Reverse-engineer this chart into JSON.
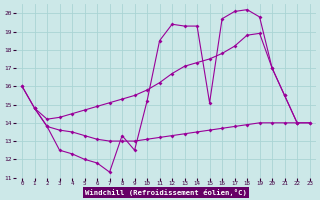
{
  "xlabel": "Windchill (Refroidissement éolien,°C)",
  "background_color": "#cce8e8",
  "grid_color": "#aad4d4",
  "line_color": "#990099",
  "label_bg_color": "#660066",
  "label_text_color": "#ffffff",
  "xlim": [
    -0.5,
    23.5
  ],
  "ylim": [
    11,
    20.5
  ],
  "yticks": [
    11,
    12,
    13,
    14,
    15,
    16,
    17,
    18,
    19,
    20
  ],
  "xticks": [
    0,
    1,
    2,
    3,
    4,
    5,
    6,
    7,
    8,
    9,
    10,
    11,
    12,
    13,
    14,
    15,
    16,
    17,
    18,
    19,
    20,
    21,
    22,
    23
  ],
  "lines": [
    {
      "x": [
        0,
        1,
        2,
        3,
        4,
        5,
        6,
        7,
        8,
        9,
        10,
        11,
        12,
        13,
        14,
        15,
        16,
        17,
        18,
        19,
        20,
        21,
        22
      ],
      "y": [
        16.0,
        14.8,
        13.8,
        12.5,
        12.3,
        12.0,
        11.8,
        11.3,
        13.3,
        12.5,
        15.2,
        18.5,
        19.4,
        19.3,
        19.3,
        15.1,
        19.7,
        20.1,
        20.2,
        19.8,
        17.0,
        15.5,
        14.0
      ]
    },
    {
      "x": [
        0,
        1,
        2,
        3,
        4,
        5,
        6,
        7,
        8,
        9,
        10,
        11,
        12,
        13,
        14,
        15,
        16,
        17,
        18,
        19,
        20,
        21,
        22,
        23
      ],
      "y": [
        16.0,
        14.8,
        14.2,
        14.3,
        14.5,
        14.7,
        14.9,
        15.1,
        15.3,
        15.5,
        15.8,
        16.2,
        16.7,
        17.1,
        17.3,
        17.5,
        17.8,
        18.2,
        18.8,
        18.9,
        17.0,
        15.5,
        14.0,
        14.0
      ]
    },
    {
      "x": [
        1,
        2,
        3,
        4,
        5,
        6,
        7,
        8,
        9,
        10,
        11,
        12,
        13,
        14,
        15,
        16,
        17,
        18,
        19,
        20,
        21,
        22,
        23
      ],
      "y": [
        14.8,
        13.8,
        13.6,
        13.5,
        13.3,
        13.1,
        13.0,
        13.0,
        13.0,
        13.1,
        13.2,
        13.3,
        13.4,
        13.5,
        13.6,
        13.7,
        13.8,
        13.9,
        14.0,
        14.0,
        14.0,
        14.0,
        14.0
      ]
    }
  ]
}
